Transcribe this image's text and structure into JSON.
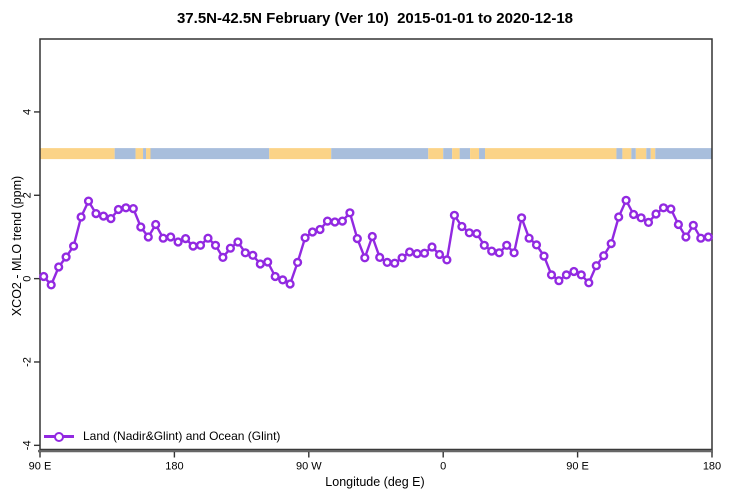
{
  "title": "37.5N-42.5N February (Ver 10)  2015-01-01 to 2020-12-18",
  "legend": {
    "label": "Land (Nadir&Glint) and Ocean (Glint)"
  },
  "colors": {
    "series_purple": "#9229E1",
    "land_orange": "#FBD387",
    "ocean_blue": "#A8BEDC",
    "axis_dark": "#333333",
    "baseline_gray": "#666666",
    "marker_fill": "#FFFFFF"
  },
  "chart_data": {
    "type": "line",
    "title": "37.5N-42.5N February (Ver 10)  2015-01-01 to 2020-12-18",
    "xlabel": "Longitude (deg E)",
    "ylabel": "XCO2 - MLO trend (ppm)",
    "xlim": [
      90,
      540
    ],
    "ylim": [
      -4.1,
      5.75
    ],
    "grid": false,
    "legend_position": "bottom-left",
    "x_ticks": [
      {
        "value": 90,
        "label": "90 E"
      },
      {
        "value": 180,
        "label": "180"
      },
      {
        "value": 270,
        "label": "90 W"
      },
      {
        "value": 360,
        "label": "0"
      },
      {
        "value": 450,
        "label": "90 E"
      },
      {
        "value": 540,
        "label": "180"
      }
    ],
    "y_ticks": [
      {
        "value": -4,
        "label": "-4"
      },
      {
        "value": -2,
        "label": "-2"
      },
      {
        "value": 0,
        "label": "0"
      },
      {
        "value": 2,
        "label": "2"
      },
      {
        "value": 4,
        "label": "4"
      }
    ],
    "surface_band": {
      "description": "land/ocean surface-type strip drawn at constant y",
      "y_value": 3.0,
      "thickness_ppm": 0.27,
      "land_color": "#FBD387",
      "ocean_color": "#A8BEDC",
      "segments": [
        {
          "from": 90,
          "to": 140,
          "surface": "land"
        },
        {
          "from": 140,
          "to": 154,
          "surface": "ocean"
        },
        {
          "from": 154,
          "to": 159,
          "surface": "land"
        },
        {
          "from": 159,
          "to": 161,
          "surface": "ocean"
        },
        {
          "from": 161,
          "to": 164,
          "surface": "land"
        },
        {
          "from": 164,
          "to": 243.5,
          "surface": "ocean"
        },
        {
          "from": 243.5,
          "to": 285,
          "surface": "land"
        },
        {
          "from": 285,
          "to": 350,
          "surface": "ocean"
        },
        {
          "from": 350,
          "to": 360,
          "surface": "land"
        },
        {
          "from": 360,
          "to": 366,
          "surface": "ocean"
        },
        {
          "from": 366,
          "to": 371,
          "surface": "land"
        },
        {
          "from": 371,
          "to": 378,
          "surface": "ocean"
        },
        {
          "from": 378,
          "to": 384,
          "surface": "land"
        },
        {
          "from": 384,
          "to": 388,
          "surface": "ocean"
        },
        {
          "from": 388,
          "to": 476,
          "surface": "land"
        },
        {
          "from": 476,
          "to": 480,
          "surface": "ocean"
        },
        {
          "from": 480,
          "to": 486,
          "surface": "land"
        },
        {
          "from": 486,
          "to": 489,
          "surface": "ocean"
        },
        {
          "from": 489,
          "to": 496,
          "surface": "land"
        },
        {
          "from": 496,
          "to": 499,
          "surface": "ocean"
        },
        {
          "from": 499,
          "to": 502,
          "surface": "land"
        },
        {
          "from": 502,
          "to": 540,
          "surface": "ocean"
        }
      ]
    },
    "series": [
      {
        "name": "Land (Nadir&Glint) and Ocean (Glint)",
        "color": "#9229E1",
        "marker": "open-circle",
        "x": [
          92.5,
          97.5,
          102.5,
          107.5,
          112.5,
          117.5,
          122.5,
          127.5,
          132.5,
          137.5,
          142.5,
          147.5,
          152.5,
          157.5,
          162.5,
          167.5,
          172.5,
          177.5,
          182.5,
          187.5,
          192.5,
          197.5,
          202.5,
          207.5,
          212.5,
          217.5,
          222.5,
          227.5,
          232.5,
          237.5,
          242.5,
          247.5,
          252.5,
          257.5,
          262.5,
          267.5,
          272.5,
          277.5,
          282.5,
          287.5,
          292.5,
          297.5,
          302.5,
          307.5,
          312.5,
          317.5,
          322.5,
          327.5,
          332.5,
          337.5,
          342.5,
          347.5,
          352.5,
          357.5,
          362.5,
          367.5,
          372.5,
          377.5,
          382.5,
          387.5,
          392.5,
          397.5,
          402.5,
          407.5,
          412.5,
          417.5,
          422.5,
          427.5,
          432.5,
          437.5,
          442.5,
          447.5,
          452.5,
          457.5,
          462.5,
          467.5,
          472.5,
          477.5,
          482.5,
          487.5,
          492.5,
          497.5,
          502.5,
          507.5,
          512.5,
          517.5,
          522.5,
          527.5,
          532.5,
          537.5
        ],
        "y": [
          0.05,
          -0.15,
          0.28,
          0.52,
          0.78,
          1.48,
          1.86,
          1.56,
          1.5,
          1.44,
          1.66,
          1.7,
          1.68,
          1.24,
          1.0,
          1.3,
          0.97,
          1.0,
          0.88,
          0.96,
          0.78,
          0.8,
          0.97,
          0.8,
          0.51,
          0.73,
          0.88,
          0.62,
          0.56,
          0.35,
          0.4,
          0.05,
          -0.03,
          -0.13,
          0.39,
          0.98,
          1.12,
          1.18,
          1.38,
          1.36,
          1.38,
          1.58,
          0.96,
          0.5,
          1.01,
          0.51,
          0.39,
          0.37,
          0.5,
          0.64,
          0.6,
          0.61,
          0.76,
          0.58,
          0.45,
          1.52,
          1.25,
          1.1,
          1.08,
          0.8,
          0.66,
          0.62,
          0.8,
          0.62,
          1.46,
          0.97,
          0.81,
          0.54,
          0.09,
          -0.05,
          0.09,
          0.17,
          0.09,
          -0.1,
          0.31,
          0.55,
          0.84,
          1.48,
          1.88,
          1.54,
          1.46,
          1.35,
          1.55,
          1.7,
          1.67,
          1.3,
          1.0,
          1.28,
          0.97,
          1.0
        ]
      }
    ]
  }
}
